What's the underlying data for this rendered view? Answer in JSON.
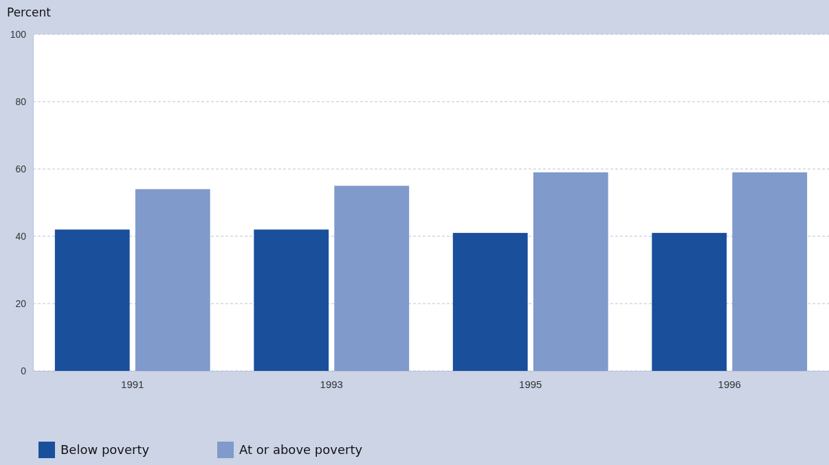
{
  "chart_data": {
    "type": "bar",
    "ylabel": "Percent",
    "categories": [
      "1991",
      "1993",
      "1995",
      "1996"
    ],
    "series": [
      {
        "name": "Below poverty",
        "color": "#1a4f9c",
        "values": [
          42,
          42,
          41,
          41
        ]
      },
      {
        "name": "At or above poverty",
        "color": "#7f9acb",
        "values": [
          54,
          55,
          59,
          59
        ]
      }
    ],
    "ylim": [
      0,
      100
    ],
    "yticks": [
      0,
      20,
      40,
      60,
      80,
      100
    ],
    "grid": "y",
    "legend": "bottom left"
  }
}
